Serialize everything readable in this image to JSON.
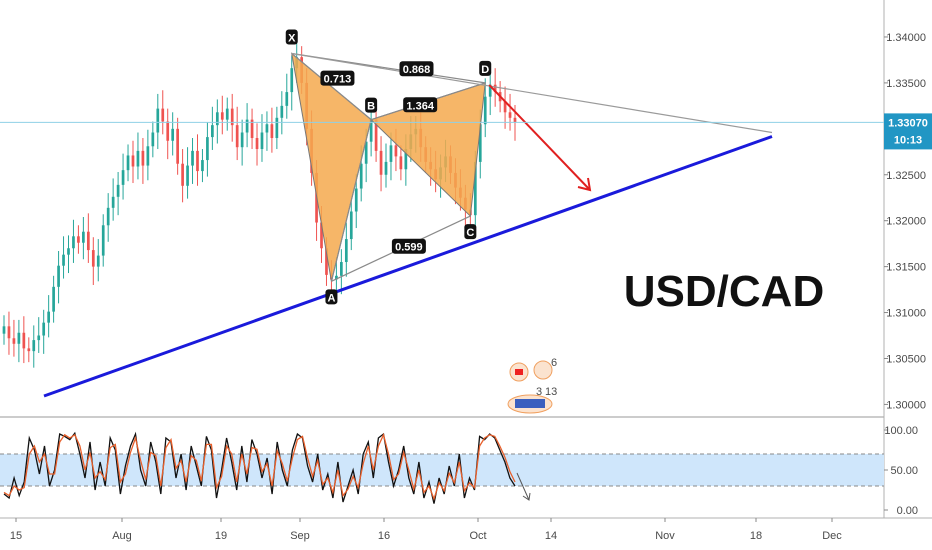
{
  "chart_data": [
    {
      "type": "candlestick",
      "symbol_label": "USD/CAD",
      "x_ticks": [
        "15",
        "Aug",
        "19",
        "Sep",
        "16",
        "Oct",
        "14",
        "Nov",
        "18",
        "Dec"
      ],
      "y_ticks": [
        "1.34000",
        "1.33500",
        "1.33000",
        "1.32500",
        "1.32000",
        "1.31500",
        "1.31000",
        "1.30500",
        "1.30000"
      ],
      "ylim": [
        1.2995,
        1.3425
      ],
      "price_badge": {
        "price": "1.33070",
        "countdown": "10:13",
        "color": "#2196c4"
      },
      "grid": false,
      "harmonic_pattern": {
        "points": [
          {
            "label": "X",
            "price": 1.3382
          },
          {
            "label": "A",
            "price": 1.3134
          },
          {
            "label": "B",
            "price": 1.331
          },
          {
            "label": "C",
            "price": 1.3205
          },
          {
            "label": "D",
            "price": 1.335
          }
        ],
        "ratios": [
          "0.713",
          "0.868",
          "1.364",
          "0.599"
        ],
        "fill_color": "#f5a94e"
      },
      "trendline_color": "#1a1adb",
      "projection_arrow_color": "#e02020",
      "series": [
        {
          "values": [
            1.3085,
            1.3072,
            1.3066,
            1.3078,
            1.3061,
            1.3058,
            1.307,
            1.3075,
            1.3089,
            1.3101,
            1.3128,
            1.3151,
            1.3163,
            1.317,
            1.3183,
            1.3176,
            1.3188,
            1.3168,
            1.315,
            1.3162,
            1.3195,
            1.3214,
            1.3226,
            1.3239,
            1.3255,
            1.3271,
            1.3259,
            1.3276,
            1.326,
            1.3281,
            1.3296,
            1.3322,
            1.3308,
            1.3287,
            1.33,
            1.3262,
            1.3238,
            1.326,
            1.3276,
            1.3254,
            1.3266,
            1.3291,
            1.3304,
            1.3318,
            1.331,
            1.3322,
            1.3304,
            1.328,
            1.3296,
            1.331,
            1.329,
            1.3278,
            1.3296,
            1.3305,
            1.329,
            1.3312,
            1.3325,
            1.334,
            1.3366,
            1.3378,
            1.335,
            1.33,
            1.3252,
            1.3198,
            1.317,
            1.3141,
            1.3136,
            1.314,
            1.3155,
            1.318,
            1.321,
            1.3235,
            1.3262,
            1.3286,
            1.331,
            1.3276,
            1.325,
            1.3264,
            1.3282,
            1.327,
            1.3256,
            1.3278,
            1.3294,
            1.33,
            1.328,
            1.3264,
            1.3256,
            1.3245,
            1.3258,
            1.327,
            1.3252,
            1.3236,
            1.3225,
            1.3212,
            1.3206,
            1.3264,
            1.3305,
            1.3335,
            1.3348,
            1.334,
            1.333,
            1.3318,
            1.3312,
            1.3307
          ]
        }
      ]
    },
    {
      "type": "line",
      "indicator": "stochastic",
      "y_ticks": [
        "100.00",
        "50.00",
        "0.00"
      ],
      "ylim": [
        0,
        100
      ],
      "band": [
        30,
        70
      ],
      "series": [
        {
          "color": "#111111",
          "values": [
            20,
            15,
            40,
            18,
            35,
            90,
            75,
            45,
            80,
            30,
            50,
            95,
            92,
            88,
            96,
            70,
            40,
            85,
            25,
            60,
            30,
            90,
            75,
            20,
            55,
            80,
            95,
            50,
            30,
            85,
            60,
            20,
            90,
            85,
            40,
            70,
            25,
            80,
            55,
            30,
            92,
            75,
            15,
            50,
            90,
            60,
            25,
            80,
            35,
            88,
            70,
            40,
            65,
            20,
            85,
            50,
            30,
            75,
            95,
            90,
            55,
            35,
            70,
            25,
            45,
            15,
            60,
            10,
            30,
            50,
            20,
            70,
            85,
            40,
            90,
            95,
            60,
            30,
            50,
            80,
            40,
            20,
            60,
            15,
            35,
            8,
            40,
            20,
            55,
            30,
            70,
            15,
            40,
            25,
            92,
            88,
            95,
            90,
            75,
            60,
            40,
            30
          ]
        },
        {
          "color": "#e8602c",
          "values": [
            22,
            18,
            30,
            25,
            28,
            70,
            80,
            60,
            70,
            45,
            45,
            85,
            94,
            90,
            94,
            80,
            50,
            72,
            40,
            48,
            38,
            78,
            82,
            35,
            45,
            72,
            90,
            62,
            38,
            72,
            68,
            30,
            78,
            88,
            52,
            62,
            35,
            68,
            62,
            36,
            82,
            82,
            28,
            42,
            80,
            70,
            35,
            70,
            45,
            78,
            76,
            48,
            58,
            30,
            74,
            58,
            36,
            65,
            88,
            92,
            65,
            42,
            62,
            32,
            40,
            22,
            50,
            18,
            26,
            42,
            28,
            58,
            80,
            50,
            80,
            94,
            70,
            38,
            45,
            72,
            50,
            26,
            50,
            22,
            30,
            14,
            34,
            24,
            46,
            34,
            60,
            24,
            34,
            28,
            80,
            90,
            94,
            92,
            80,
            66,
            48,
            35
          ]
        }
      ]
    }
  ]
}
